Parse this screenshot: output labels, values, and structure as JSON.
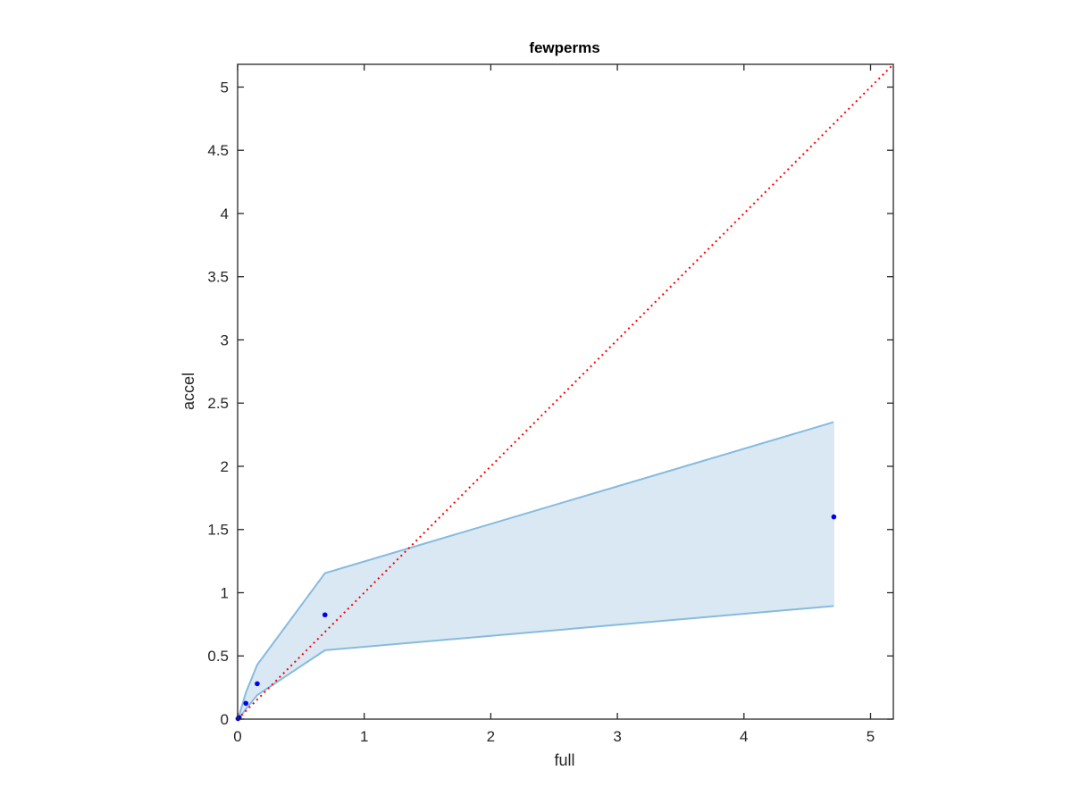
{
  "chart_data": {
    "type": "line",
    "title": "fewperms",
    "xlabel": "full",
    "ylabel": "accel",
    "xlim": [
      0,
      5.18
    ],
    "ylim": [
      0,
      5.18
    ],
    "x_ticks": [
      0,
      1,
      2,
      3,
      4,
      5
    ],
    "x_tick_labels": [
      "0",
      "1",
      "2",
      "3",
      "4",
      "5"
    ],
    "y_ticks": [
      0,
      0.5,
      1,
      1.5,
      2,
      2.5,
      3,
      3.5,
      4,
      4.5,
      5
    ],
    "y_tick_labels": [
      "0",
      "0.5",
      "1",
      "1.5",
      "2",
      "2.5",
      "3",
      "3.5",
      "4",
      "4.5",
      "5"
    ],
    "grid": false,
    "box": true,
    "points": {
      "x": [
        0.003,
        0.012,
        0.065,
        0.155,
        0.69,
        4.71
      ],
      "y": [
        0.004,
        0.012,
        0.125,
        0.28,
        0.825,
        1.6
      ],
      "color": "#0000ee"
    },
    "band": {
      "x": [
        0.003,
        0.012,
        0.065,
        0.155,
        0.69,
        4.71
      ],
      "upper": [
        0.006,
        0.03,
        0.21,
        0.43,
        1.155,
        2.35
      ],
      "lower": [
        0.002,
        0.006,
        0.08,
        0.19,
        0.545,
        0.895
      ],
      "fill_color": "#dae8f4",
      "line_color": "#86bbdd"
    },
    "reference_line": {
      "x": [
        0,
        5.18
      ],
      "y": [
        0,
        5.18
      ],
      "style": "dotted",
      "color": "#ff0000"
    },
    "axis_color": "#262626"
  }
}
